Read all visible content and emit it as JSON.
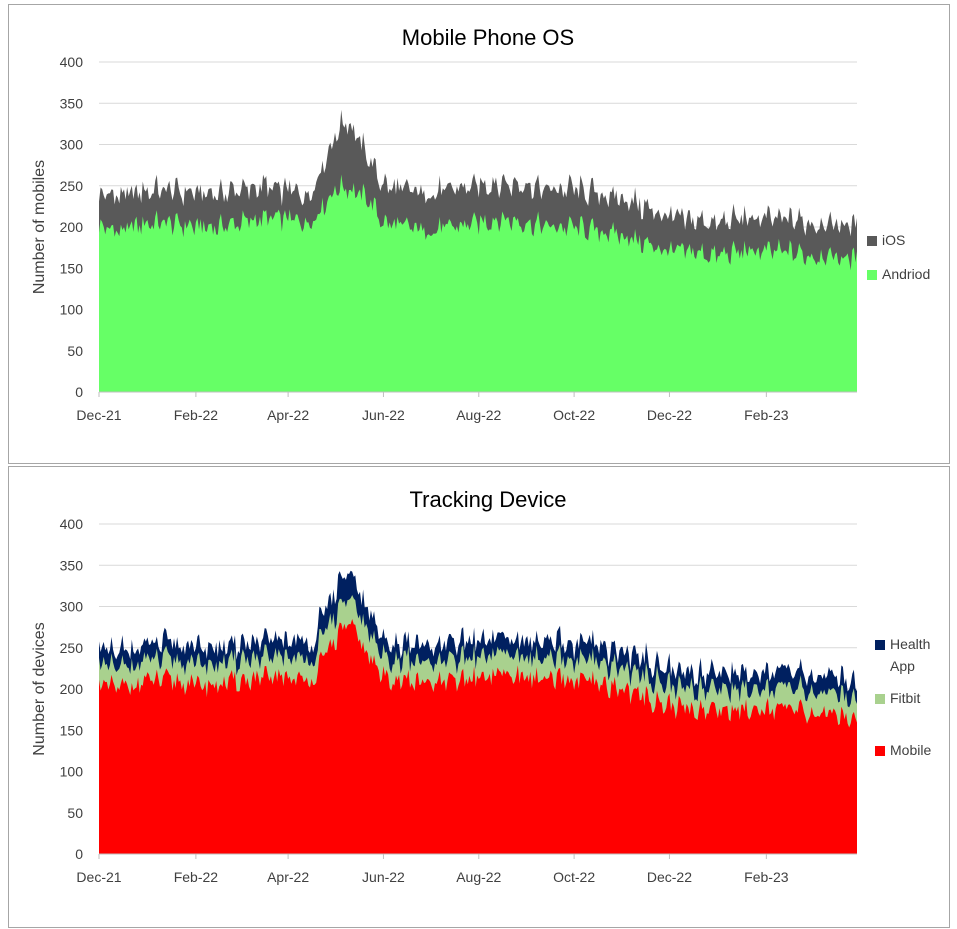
{
  "chart_data": [
    {
      "type": "area",
      "stacked": true,
      "title": "Mobile Phone OS",
      "ylabel": "Number of mobiles",
      "xlabel": "",
      "ylim": [
        0,
        400
      ],
      "yticks": [
        0,
        50,
        100,
        150,
        200,
        250,
        300,
        350,
        400
      ],
      "x_range": [
        "2021-12-01",
        "2023-03-31"
      ],
      "xtick_labels": [
        "Dec-21",
        "Feb-22",
        "Apr-22",
        "Jun-22",
        "Aug-22",
        "Oct-22",
        "Dec-22",
        "Feb-23"
      ],
      "grid": true,
      "legend_position": "right",
      "x": [
        "2021-12-01",
        "2021-12-15",
        "2022-01-01",
        "2022-01-15",
        "2022-02-01",
        "2022-02-15",
        "2022-03-01",
        "2022-03-15",
        "2022-04-01",
        "2022-04-15",
        "2022-05-01",
        "2022-05-08",
        "2022-05-15",
        "2022-05-22",
        "2022-06-01",
        "2022-06-15",
        "2022-07-01",
        "2022-07-15",
        "2022-08-01",
        "2022-08-15",
        "2022-09-01",
        "2022-09-15",
        "2022-10-01",
        "2022-10-15",
        "2022-11-01",
        "2022-11-15",
        "2022-12-01",
        "2022-12-15",
        "2023-01-01",
        "2023-01-15",
        "2023-02-01",
        "2023-02-15",
        "2023-03-01",
        "2023-03-15",
        "2023-03-31"
      ],
      "series": [
        {
          "name": "Andriod",
          "color": "#66ff66",
          "values": [
            200,
            195,
            205,
            205,
            200,
            200,
            205,
            210,
            210,
            205,
            245,
            250,
            240,
            235,
            205,
            200,
            195,
            200,
            205,
            210,
            205,
            200,
            200,
            195,
            190,
            180,
            170,
            170,
            165,
            170,
            170,
            170,
            165,
            165,
            160
          ]
        },
        {
          "name": "iOS",
          "color": "#595959",
          "values": [
            40,
            42,
            40,
            40,
            40,
            40,
            40,
            38,
            35,
            35,
            65,
            80,
            70,
            50,
            45,
            45,
            45,
            45,
            45,
            45,
            45,
            45,
            45,
            45,
            45,
            45,
            40,
            40,
            40,
            40,
            40,
            40,
            40,
            40,
            40
          ]
        }
      ]
    },
    {
      "type": "area",
      "stacked": true,
      "title": "Tracking Device",
      "ylabel": "Number of devices",
      "xlabel": "",
      "ylim": [
        0,
        400
      ],
      "yticks": [
        0,
        50,
        100,
        150,
        200,
        250,
        300,
        350,
        400
      ],
      "x_range": [
        "2021-12-01",
        "2023-03-31"
      ],
      "xtick_labels": [
        "Dec-21",
        "Feb-22",
        "Apr-22",
        "Jun-22",
        "Aug-22",
        "Oct-22",
        "Dec-22",
        "Feb-23"
      ],
      "grid": true,
      "legend_position": "right",
      "x": [
        "2021-12-01",
        "2021-12-15",
        "2022-01-01",
        "2022-01-15",
        "2022-02-01",
        "2022-02-15",
        "2022-03-01",
        "2022-03-15",
        "2022-04-01",
        "2022-04-15",
        "2022-05-01",
        "2022-05-08",
        "2022-05-15",
        "2022-05-22",
        "2022-06-01",
        "2022-06-15",
        "2022-07-01",
        "2022-07-15",
        "2022-08-01",
        "2022-08-15",
        "2022-09-01",
        "2022-09-15",
        "2022-10-01",
        "2022-10-15",
        "2022-11-01",
        "2022-11-15",
        "2022-12-01",
        "2022-12-15",
        "2023-01-01",
        "2023-01-15",
        "2023-02-01",
        "2023-02-15",
        "2023-03-01",
        "2023-03-15",
        "2023-03-31"
      ],
      "series": [
        {
          "name": "Mobile",
          "color": "#ff0000",
          "values": [
            205,
            200,
            210,
            210,
            205,
            205,
            210,
            212,
            215,
            208,
            260,
            280,
            265,
            240,
            215,
            210,
            205,
            208,
            215,
            218,
            215,
            210,
            210,
            205,
            200,
            190,
            180,
            175,
            175,
            175,
            178,
            175,
            170,
            170,
            165
          ]
        },
        {
          "name": "Fitbit",
          "color": "#a9d18e",
          "values": [
            25,
            25,
            25,
            25,
            25,
            25,
            25,
            25,
            25,
            25,
            30,
            30,
            30,
            30,
            25,
            25,
            25,
            25,
            25,
            25,
            25,
            25,
            25,
            25,
            25,
            25,
            25,
            25,
            25,
            25,
            25,
            25,
            25,
            25,
            25
          ]
        },
        {
          "name": "Health App",
          "color": "#002060",
          "values": [
            20,
            20,
            20,
            20,
            20,
            20,
            20,
            20,
            20,
            20,
            30,
            30,
            28,
            25,
            20,
            20,
            20,
            20,
            20,
            20,
            20,
            20,
            20,
            20,
            20,
            20,
            20,
            20,
            20,
            20,
            20,
            20,
            20,
            20,
            20
          ]
        }
      ]
    }
  ]
}
